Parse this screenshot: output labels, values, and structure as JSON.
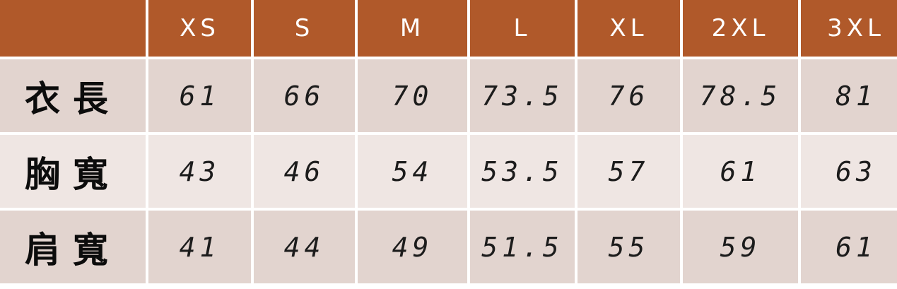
{
  "table": {
    "corner": "",
    "columns": [
      "XS",
      "S",
      "M",
      "L",
      "XL",
      "2XL",
      "3XL"
    ],
    "rows": [
      {
        "label": "衣長",
        "values": [
          "61",
          "66",
          "70",
          "73.5",
          "76",
          "78.5",
          "81"
        ]
      },
      {
        "label": "胸寬",
        "values": [
          "43",
          "46",
          "54",
          "53.5",
          "57",
          "61",
          "63"
        ]
      },
      {
        "label": "肩寬",
        "values": [
          "41",
          "44",
          "49",
          "51.5",
          "55",
          "59",
          "61"
        ]
      }
    ]
  },
  "colors": {
    "header_bg": "#b0592a",
    "header_text": "#ffffff",
    "row_alt_1": "#e2d4cf",
    "row_alt_2": "#efe6e3"
  }
}
